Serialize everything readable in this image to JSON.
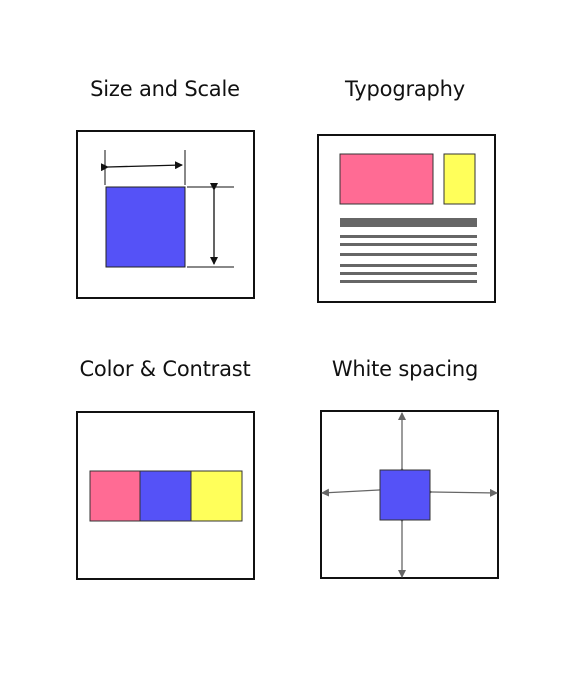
{
  "panels": [
    {
      "title": "Size and Scale",
      "illustration": "size-scale-diagram"
    },
    {
      "title": "Typography",
      "illustration": "typography-layout-diagram"
    },
    {
      "title": "Color & Contrast",
      "illustration": "color-swatch-diagram"
    },
    {
      "title": "White spacing",
      "illustration": "white-space-diagram"
    }
  ],
  "colors": {
    "pink": "#ff6b94",
    "blue": "#5552f7",
    "yellow": "#ffff5a",
    "gray_line": "#666666",
    "outline": "#111111"
  }
}
